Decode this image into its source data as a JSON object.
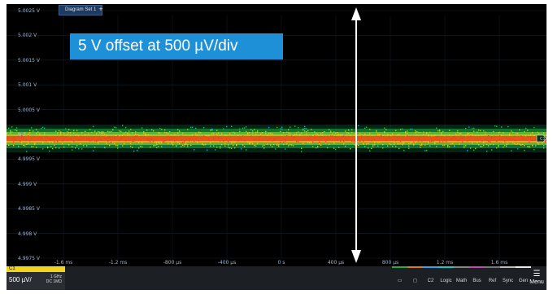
{
  "title_tab": "Diagram Set 1",
  "add_tab": "+",
  "annotation": "5 V offset at 500 µV/div",
  "y_axis_labels": [
    "5.0025 V",
    "5.002 V",
    "5.0015 V",
    "5.001 V",
    "5.0005 V",
    "5 V",
    "4.9995 V",
    "4.999 V",
    "4.9985 V",
    "4.998 V",
    "4.9975 V"
  ],
  "x_axis_labels": [
    "-1.6 ms",
    "-1.2 ms",
    "-800 µs",
    "-400 µs",
    "0 s",
    "400 µs",
    "800 µs",
    "1.2 ms",
    "1.6 ms",
    "2 ms"
  ],
  "channel": {
    "name": "C1",
    "scale": "500 µV/",
    "bandwidth": "1 GHz",
    "coupling": "DC 1MΩ",
    "color": "#f3d41a"
  },
  "toolbar": {
    "buttons": [
      {
        "label": "▭",
        "icon": "screen-icon",
        "stripe": "#2ea84a"
      },
      {
        "label": "◻",
        "icon": "capture-icon",
        "stripe": "#e07b1a"
      },
      {
        "label": "C2",
        "icon": "channel-2",
        "stripe": "#3fa0e8"
      },
      {
        "label": "Logic",
        "icon": "logic",
        "stripe": "#1ec8c8"
      },
      {
        "label": "Math",
        "icon": "math",
        "stripe": "#888888"
      },
      {
        "label": "Bus",
        "icon": "bus",
        "stripe": "#c04cb0"
      },
      {
        "label": "Ref",
        "icon": "ref",
        "stripe": "#777777"
      },
      {
        "label": "Sync",
        "icon": "sync",
        "stripe": "#bbbbbb"
      },
      {
        "label": "Gen",
        "icon": "gen",
        "stripe": "#e9e9e9"
      }
    ],
    "menu_label": "Menu"
  },
  "colors": {
    "trace_low": "#2db84b",
    "trace_high": "#e8471c",
    "accent": "#1e90d8",
    "background": "#000000"
  },
  "marker_label": "C1"
}
